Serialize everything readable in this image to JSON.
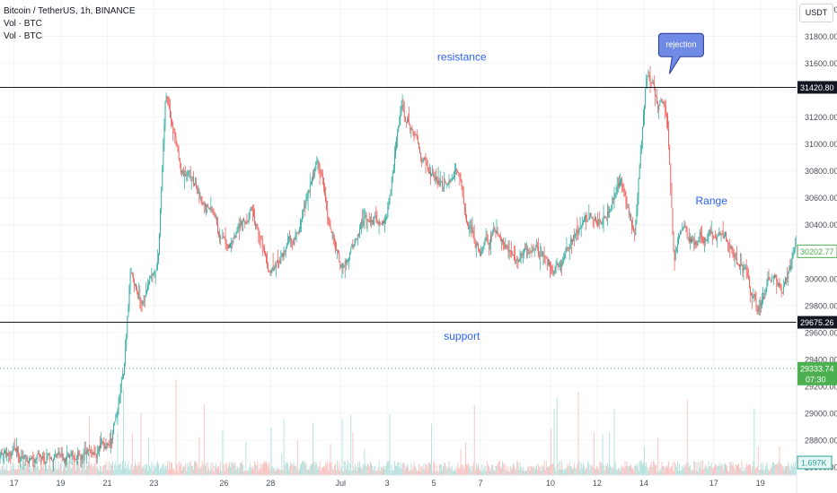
{
  "legend": {
    "symbol_line": "Bitcoin / TetherUS, 1h, BINANCE",
    "volume_line_1": "Vol · BTC",
    "volume_line_2": "Vol · BTC"
  },
  "currency_button": "USDT",
  "colors": {
    "up": "#26a69a",
    "down": "#ef5350",
    "level_line": "#131722",
    "annotation_text": "#2962ff",
    "callout_fill": "#6f8be6",
    "current_price_tag": "#4caf50",
    "volume_up": "#a8dcd6",
    "volume_down": "#f7b8b6"
  },
  "chart_data": {
    "type": "candlestick",
    "symbol": "Bitcoin / TetherUS",
    "interval": "1h",
    "exchange": "BINANCE",
    "y_axis": {
      "ticks": [
        "32000.00",
        "31800.00",
        "31600.00",
        "31400.00",
        "31200.00",
        "31000.00",
        "30800.00",
        "30600.00",
        "30400.00",
        "30200.00",
        "30000.00",
        "29800.00",
        "29600.00",
        "29400.00",
        "29200.00",
        "29000.00",
        "28800.00",
        "28600.00"
      ],
      "range": [
        28540,
        32070
      ]
    },
    "x_axis": {
      "ticks": [
        {
          "label": "17",
          "day": 0
        },
        {
          "label": "19",
          "day": 2
        },
        {
          "label": "21",
          "day": 4
        },
        {
          "label": "23",
          "day": 6
        },
        {
          "label": "26",
          "day": 9
        },
        {
          "label": "28",
          "day": 11
        },
        {
          "label": "Jul",
          "day": 14
        },
        {
          "label": "3",
          "day": 16
        },
        {
          "label": "5",
          "day": 18
        },
        {
          "label": "7",
          "day": 20
        },
        {
          "label": "10",
          "day": 23
        },
        {
          "label": "12",
          "day": 25
        },
        {
          "label": "14",
          "day": 27
        },
        {
          "label": "17",
          "day": 30
        },
        {
          "label": "19",
          "day": 32
        }
      ],
      "range_days": [
        -0.6,
        33.55
      ]
    },
    "price_path": [
      [
        -0.6,
        28650
      ],
      [
        3.5,
        28680
      ],
      [
        4.2,
        28800
      ],
      [
        4.7,
        29350
      ],
      [
        5.0,
        30100
      ],
      [
        5.5,
        29800
      ],
      [
        6.2,
        30150
      ],
      [
        6.5,
        31380
      ],
      [
        7.2,
        30800
      ],
      [
        8.3,
        30550
      ],
      [
        9.1,
        30200
      ],
      [
        10.2,
        30500
      ],
      [
        11.0,
        30050
      ],
      [
        12.1,
        30300
      ],
      [
        13.0,
        30850
      ],
      [
        14.0,
        30100
      ],
      [
        15.0,
        30400
      ],
      [
        16.0,
        30500
      ],
      [
        16.6,
        31270
      ],
      [
        17.5,
        30950
      ],
      [
        18.4,
        30700
      ],
      [
        19.0,
        30900
      ],
      [
        19.4,
        30450
      ],
      [
        20.0,
        30200
      ],
      [
        20.6,
        30350
      ],
      [
        21.4,
        30200
      ],
      [
        22.5,
        30150
      ],
      [
        23.5,
        30050
      ],
      [
        24.3,
        30400
      ],
      [
        25.2,
        30500
      ],
      [
        26.0,
        30700
      ],
      [
        26.6,
        30350
      ],
      [
        27.1,
        31500
      ],
      [
        27.6,
        31300
      ],
      [
        28.0,
        31250
      ],
      [
        28.3,
        30100
      ],
      [
        28.5,
        30320
      ],
      [
        29.5,
        30310
      ],
      [
        30.0,
        30330
      ],
      [
        30.6,
        30250
      ],
      [
        31.3,
        30050
      ],
      [
        31.9,
        29800
      ],
      [
        32.4,
        30000
      ],
      [
        32.9,
        29950
      ],
      [
        33.55,
        30200
      ]
    ],
    "candle_hours": 1,
    "levels": [
      {
        "name": "resistance",
        "price": 31420.8,
        "price_tag": "31420.80"
      },
      {
        "name": "support",
        "price": 29675.26,
        "price_tag": "29675.26"
      }
    ],
    "last_price": {
      "price": 30202.77,
      "tag": "30202.77"
    },
    "dotted_level": {
      "price": 29333.74,
      "tag": "29333.74",
      "countdown": "07:30"
    },
    "volume_tag": "1.697K",
    "annotations": [
      {
        "text": "resistance",
        "day": 19.2,
        "price": 31620
      },
      {
        "text": "support",
        "day": 19.2,
        "price": 29545
      },
      {
        "text": "Range",
        "day": 29.9,
        "price": 30550
      },
      {
        "text": "rejection",
        "day": 28.6,
        "price": 31735,
        "style": "callout"
      }
    ]
  }
}
